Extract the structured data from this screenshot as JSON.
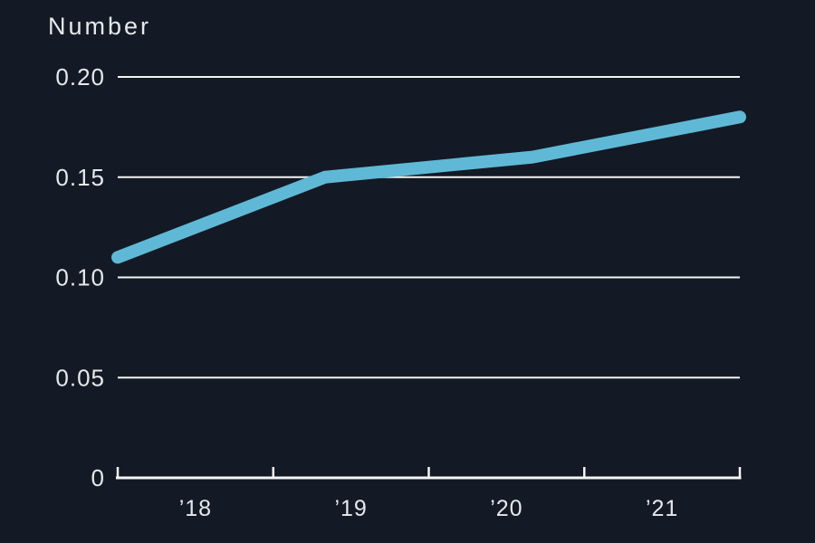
{
  "chart": {
    "background_color": "#131A25",
    "text_color": "#E6E9EB",
    "grid_color": "#F3F4F5",
    "axis_color": "#F3F4F5",
    "accent_color": "#5FB9D6"
  },
  "chart_data": {
    "type": "line",
    "title": "Number",
    "categories": [
      "’18",
      "’19",
      "’20",
      "’21"
    ],
    "x": [
      2018,
      2019,
      2020,
      2021
    ],
    "values": [
      0.11,
      0.15,
      0.16,
      0.18
    ],
    "xlabel": "",
    "ylabel": "Number",
    "ylim": [
      0,
      0.2
    ],
    "yticks": [
      0,
      0.05,
      0.1,
      0.15,
      0.2
    ],
    "ytick_labels": [
      "0",
      "0.05",
      "0.10",
      "0.15",
      "0.20"
    ],
    "grid": "horizontal-only, no gridline at 0 (baseline axis with upward tick marks instead)",
    "legend": "none",
    "line_color": "#5FB9D6",
    "line_width": 14
  }
}
